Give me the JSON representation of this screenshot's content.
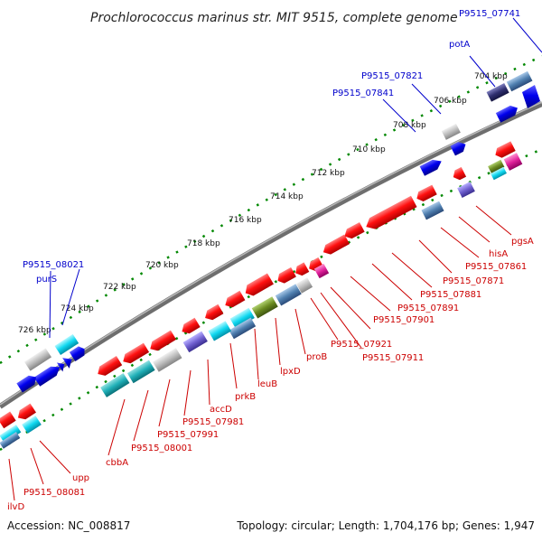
{
  "title": "Prochlorococcus marinus str. MIT 9515, complete genome",
  "footer": {
    "accession": "Accession: NC_008817",
    "stats": "Topology: circular; Length: 1,704,176 bp; Genes: 1,947"
  },
  "ticks": [
    "704 kbp",
    "706 kbp",
    "708 kbp",
    "710 kbp",
    "712 kbp",
    "714 kbp",
    "716 kbp",
    "718 kbp",
    "720 kbp",
    "722 kbp",
    "724 kbp",
    "726 kbp"
  ],
  "labels_top": [
    "P9515_07741",
    "potA",
    "P9515_07821",
    "P9515_07841",
    "P9515_08021",
    "purS"
  ],
  "labels_bottom": [
    "pgsA",
    "hisA",
    "P9515_07861",
    "P9515_07871",
    "P9515_07881",
    "P9515_07891",
    "P9515_07901",
    "P9515_07911",
    "P9515_07921",
    "proB",
    "lpxD",
    "leuB",
    "prkB",
    "accD",
    "P9515_07981",
    "P9515_07991",
    "P9515_08001",
    "cbbA",
    "upp",
    "P9515_08081",
    "ilvD"
  ],
  "colors": {
    "backbone": "#7a7a7a",
    "ticks": "#008800",
    "forward": "#0000dd",
    "reverse": "#ee0000",
    "cyan": "#00c8e0",
    "teal": "#20b0b8",
    "grey": "#b0b0b0",
    "steel": "#5080b0",
    "purple": "#7060d0",
    "olive": "#6a8a20",
    "magenta": "#e0209a",
    "navy": "#303070"
  }
}
